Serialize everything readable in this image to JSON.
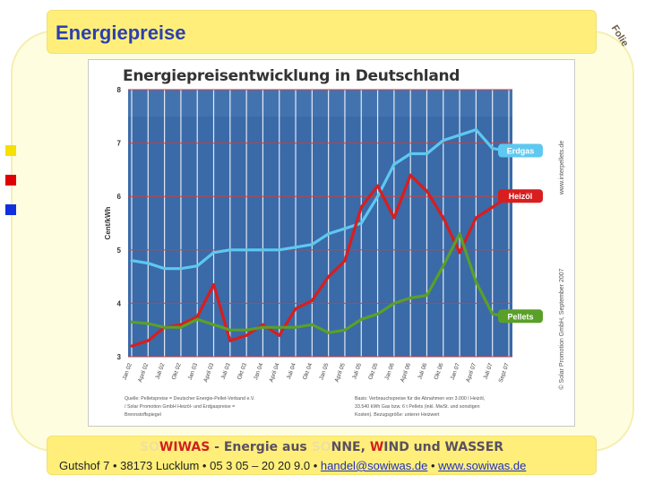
{
  "slide": {
    "title": "Energiepreise",
    "corner_label": "Folie",
    "bullet_colors": [
      "#f5e000",
      "#e00000",
      "#1030e0"
    ]
  },
  "chart_data": {
    "type": "line",
    "title": "Energiepreisentwicklung in Deutschland",
    "ylabel": "Cent/kWh",
    "xlabel": "",
    "ylim": [
      3,
      8
    ],
    "yticks": [
      "3",
      "4",
      "5",
      "6",
      "7",
      "8"
    ],
    "x": [
      "Jan 02",
      "April 02",
      "Juli 02",
      "Okt 02",
      "Jan 03",
      "April 03",
      "Juli 03",
      "Okt 03",
      "Jan 04",
      "April 04",
      "Juli 04",
      "Okt 04",
      "Jan 05",
      "April 05",
      "Juli 05",
      "Okt 05",
      "Jan 06",
      "April 06",
      "Juli 06",
      "Okt 06",
      "Jan 07",
      "April 07",
      "Juli 07",
      "Sept 07"
    ],
    "grid": true,
    "series": [
      {
        "name": "Erdgas",
        "color": "#5ec8f0",
        "values": [
          4.8,
          4.75,
          4.65,
          4.65,
          4.7,
          4.95,
          5.0,
          5.0,
          5.0,
          5.0,
          5.05,
          5.1,
          5.3,
          5.4,
          5.5,
          6.0,
          6.6,
          6.8,
          6.8,
          7.05,
          7.15,
          7.25,
          6.9,
          6.85
        ]
      },
      {
        "name": "Heizöl",
        "color": "#d81e1e",
        "values": [
          3.2,
          3.3,
          3.55,
          3.6,
          3.75,
          4.35,
          3.3,
          3.4,
          3.6,
          3.4,
          3.9,
          4.05,
          4.5,
          4.8,
          5.8,
          6.2,
          5.6,
          6.4,
          6.1,
          5.6,
          4.95,
          5.6,
          5.8,
          6.0
        ]
      },
      {
        "name": "Pellets",
        "color": "#5aa028",
        "values": [
          3.65,
          3.62,
          3.55,
          3.55,
          3.7,
          3.6,
          3.5,
          3.5,
          3.55,
          3.55,
          3.55,
          3.6,
          3.45,
          3.5,
          3.7,
          3.8,
          4.0,
          4.1,
          4.15,
          4.7,
          5.3,
          4.4,
          3.8,
          3.75
        ]
      }
    ],
    "source_left": "Quelle: Pelletspreise = Deutscher Energie-Pellet-Verband e.V. / Solar Promotion GmbH  Heizöl- und Erdgaspreise = Brennstoffspiegel",
    "source_right": "Basis: Verbrauchspreise für die Abnahmen von 3.000 l Heizöl, 33.540 kWh Gas bzw. 6 t Pellets (inkl. MwSt. und sonstigen Kosten). Bezugsgröße: unterer Heizwert",
    "side_url": "www.interpellets.de",
    "side_copyright": "© Solar Promotion GmbH, September 2007"
  },
  "footer": {
    "brand_prefix1": "SO",
    "brand_word1": "WIWAS",
    "brand_mid": " - Energie aus ",
    "brand_prefix2": "SO",
    "brand_word2": "NNE, ",
    "brand_w": "W",
    "brand_word3": "IND und ",
    "brand_wasser": "WASSER",
    "contact_text": "Gutshof 7 • 38173 Lucklum • 05 3 05 – 20 20 9.0 • ",
    "email": "handel@sowiwas.de",
    "separator": " • ",
    "website": "www.sowiwas.de"
  }
}
